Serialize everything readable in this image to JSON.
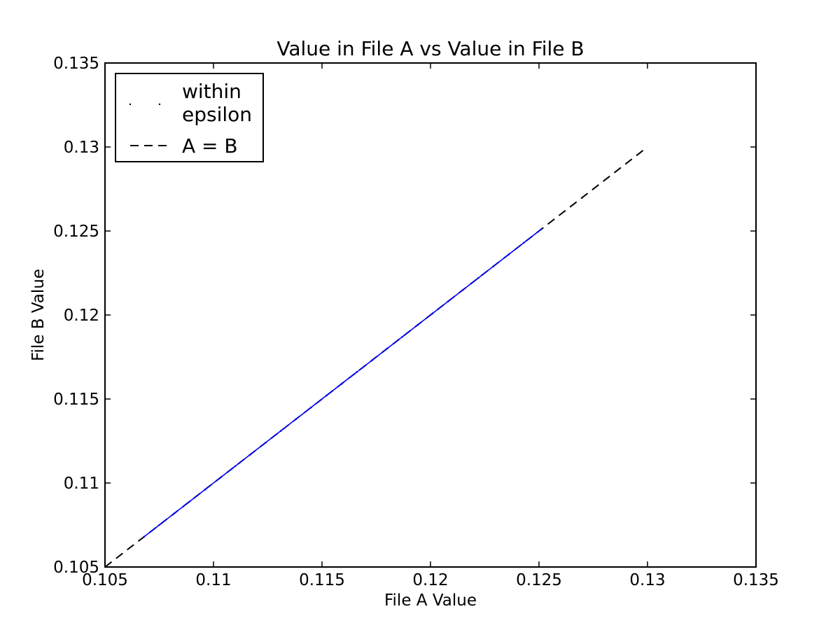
{
  "chart_data": {
    "type": "scatter",
    "title": "Value in File A vs Value in File B",
    "xlabel": "File A Value",
    "ylabel": "File B Value",
    "xlim": [
      0.105,
      0.135
    ],
    "ylim": [
      0.105,
      0.135
    ],
    "x_ticks": [
      "0.105",
      "0.11",
      "0.115",
      "0.12",
      "0.125",
      "0.13",
      "0.135"
    ],
    "y_ticks": [
      "0.105",
      "0.11",
      "0.115",
      "0.12",
      "0.125",
      "0.13",
      "0.135"
    ],
    "grid": false,
    "legend_position": "top-left",
    "series": [
      {
        "name": "within epsilon",
        "name_lines": [
          "within",
          "epsilon"
        ],
        "kind": "points",
        "color": "#0000ff",
        "x_range": [
          0.1068,
          0.1251
        ],
        "x": [
          0.1068,
          0.1075,
          0.1082,
          0.1089,
          0.1096,
          0.1103,
          0.111,
          0.1117,
          0.1124,
          0.1131,
          0.1138,
          0.1145,
          0.1152,
          0.1159,
          0.1166,
          0.1173,
          0.118,
          0.1187,
          0.1194,
          0.1201,
          0.1208,
          0.1215,
          0.1222,
          0.1229,
          0.1236,
          0.1243,
          0.1251
        ],
        "y": [
          0.1068,
          0.1075,
          0.1082,
          0.1089,
          0.1096,
          0.1103,
          0.111,
          0.1117,
          0.1124,
          0.1131,
          0.1138,
          0.1145,
          0.1152,
          0.1159,
          0.1166,
          0.1173,
          0.118,
          0.1187,
          0.1194,
          0.1201,
          0.1208,
          0.1215,
          0.1222,
          0.1229,
          0.1236,
          0.1243,
          0.1251
        ]
      },
      {
        "name": "A = B",
        "kind": "line",
        "style": "dashed",
        "color": "#000000",
        "x": [
          0.105,
          0.13
        ],
        "y": [
          0.105,
          0.13
        ]
      }
    ]
  }
}
